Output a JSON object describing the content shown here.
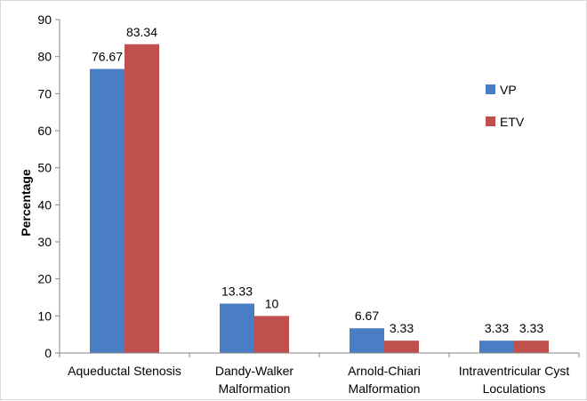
{
  "chart_data": {
    "type": "bar",
    "title": "",
    "xlabel": "",
    "ylabel": "Percentage",
    "ylim": [
      0,
      90
    ],
    "yticks": [
      0,
      10,
      20,
      30,
      40,
      50,
      60,
      70,
      80,
      90
    ],
    "grid": false,
    "legend_position": "right",
    "categories": [
      [
        "Aqueductal Stenosis"
      ],
      [
        "Dandy-Walker",
        "Malformation"
      ],
      [
        "Arnold-Chiari",
        "Malformation"
      ],
      [
        "Intraventricular Cyst",
        "Loculations"
      ]
    ],
    "series": [
      {
        "name": "VP",
        "color": "#4a7ec4",
        "values": [
          76.67,
          13.33,
          6.67,
          3.33
        ],
        "labels": [
          "76.67",
          "13.33",
          "6.67",
          "3.33"
        ]
      },
      {
        "name": "ETV",
        "color": "#c0504d",
        "values": [
          83.34,
          10,
          3.33,
          3.33
        ],
        "labels": [
          "83.34",
          "10",
          "3.33",
          "3.33"
        ]
      }
    ]
  }
}
